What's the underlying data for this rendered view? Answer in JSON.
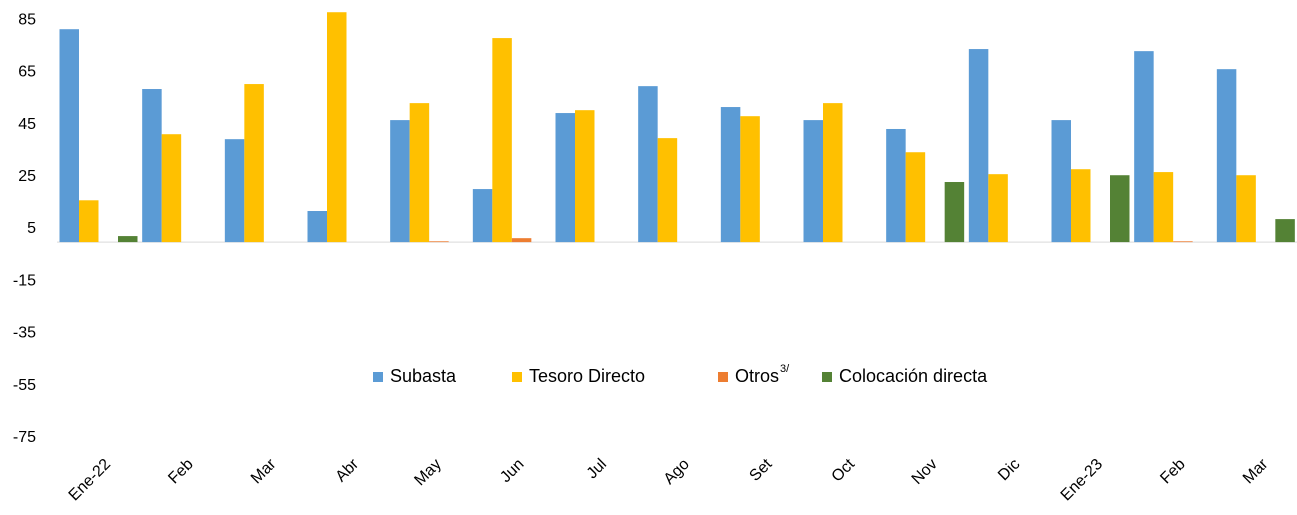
{
  "chart_data": {
    "type": "bar",
    "categories": [
      "Ene-22",
      "Feb",
      "Mar",
      "Abr",
      "May",
      "Jun",
      "Jul",
      "Ago",
      "Set",
      "Oct",
      "Nov",
      "Dic",
      "Ene-23",
      "Feb",
      "Mar"
    ],
    "series": [
      {
        "name": "Subasta",
        "color": "#5b9bd5",
        "values": [
          81.5,
          58.6,
          39.4,
          11.9,
          46.7,
          20.3,
          49.4,
          59.7,
          51.7,
          46.7,
          43.3,
          73.9,
          46.7,
          73.1,
          66.2
        ]
      },
      {
        "name": "Tesoro Directo",
        "color": "#ffc000",
        "values": [
          16,
          41.3,
          60.5,
          88,
          53.2,
          78.1,
          50.5,
          39.8,
          48.2,
          53.2,
          34.4,
          26,
          27.9,
          26.8,
          25.6
        ]
      },
      {
        "name": "Otros",
        "superscript": "3/",
        "color": "#ed7d31",
        "values": [
          0,
          0,
          0,
          0,
          0.3,
          1.5,
          0,
          0,
          0,
          0,
          0,
          0,
          0,
          0.3,
          0
        ]
      },
      {
        "name": "Colocación directa",
        "color": "#548235",
        "values": [
          2.3,
          0,
          0,
          0,
          0,
          0,
          0,
          0,
          0,
          0,
          23,
          0,
          25.6,
          0,
          8.8
        ]
      }
    ],
    "ylim": [
      -75,
      90
    ],
    "yticks": [
      85,
      65,
      45,
      25,
      5,
      -15,
      -35,
      -55,
      -75
    ],
    "grid": false,
    "legend": "center"
  }
}
